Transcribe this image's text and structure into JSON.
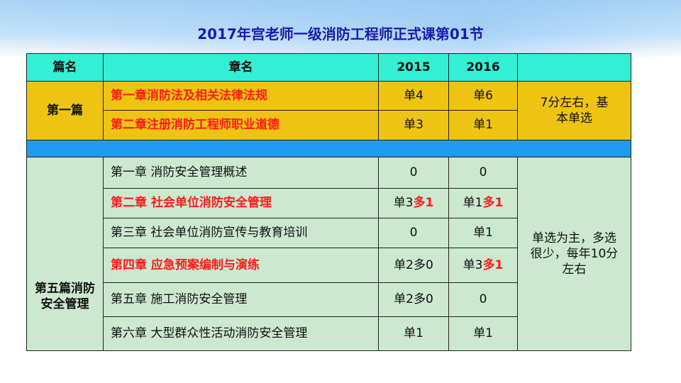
{
  "title": "2017年宫老师一级消防工程师正式课第01节",
  "header": {
    "part": "篇名",
    "chapter": "章名",
    "y2015": "2015",
    "y2016": "2016",
    "note": ""
  },
  "part1": {
    "name": "第一篇",
    "note": "7分左右，基本单选",
    "rows": [
      {
        "chapter": "第一章消防法及相关法律法规",
        "y2015": "单4",
        "y2016": "单6"
      },
      {
        "chapter": "第二章注册消防工程师职业道德",
        "y2015": "单3",
        "y2016": "单1"
      }
    ]
  },
  "part5": {
    "name": "第五篇消防安全管理",
    "note": "单选为主，多选很少，每年10分左右",
    "rows": [
      {
        "chapter": "第一章 消防安全管理概述",
        "highlight": false,
        "y2015": [
          "0",
          ""
        ],
        "y2016": [
          "0",
          ""
        ]
      },
      {
        "chapter": "第二章 社会单位消防安全管理",
        "highlight": true,
        "y2015": [
          "单3",
          "多1"
        ],
        "y2016": [
          "单1",
          "多1"
        ]
      },
      {
        "chapter": "第三章 社会单位消防宣传与教育培训",
        "highlight": false,
        "y2015": [
          "0",
          ""
        ],
        "y2016": [
          "单1",
          ""
        ]
      },
      {
        "chapter": "第四章 应急预案编制与演练",
        "highlight": true,
        "y2015": [
          "单2多0",
          ""
        ],
        "y2016": [
          "单3",
          "多1"
        ]
      },
      {
        "chapter": "第五章 施工消防安全管理",
        "highlight": false,
        "y2015": [
          "单2多0",
          ""
        ],
        "y2016": [
          "0",
          ""
        ]
      },
      {
        "chapter": "第六章 大型群众性活动消防安全管理",
        "highlight": false,
        "y2015": [
          "单1",
          ""
        ],
        "y2016": [
          "单1",
          ""
        ]
      }
    ]
  },
  "colors": {
    "header": "#33f0d4",
    "part1": "#eec414",
    "divider": "#1e9cef",
    "part5": "#cce8cf",
    "highlight": "#ff1a1a",
    "title": "#1a1aa8"
  }
}
